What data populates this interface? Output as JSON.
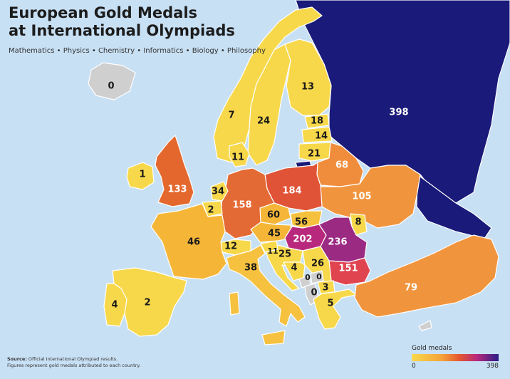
{
  "title": "European Gold Medals\nat International Olympiads",
  "subtitle": "Mathematics • Physics • Chemistry • Informatics • Biology • Philosophy",
  "legend": {
    "title": "Gold medals",
    "min": "0",
    "max": "398"
  },
  "footer": {
    "source_label": "Source:",
    "source_text": " Official International Olympiad results.",
    "note": "Figures represent gold medals attributed to each country."
  },
  "colors": {
    "sea": "#c8e0f4",
    "low": "#f7d84a",
    "mid": "#f5a23a",
    "high": "#e4562f",
    "very_high": "#b8287c",
    "max": "#1a1a7a",
    "no_data": "#cfcfcf"
  },
  "countries": [
    {
      "id": "iceland",
      "value": "0"
    },
    {
      "id": "norway",
      "value": "7"
    },
    {
      "id": "sweden",
      "value": "24"
    },
    {
      "id": "finland",
      "value": "13"
    },
    {
      "id": "russia",
      "value": "398"
    },
    {
      "id": "estonia",
      "value": "18"
    },
    {
      "id": "latvia",
      "value": "14"
    },
    {
      "id": "lithuania",
      "value": "21"
    },
    {
      "id": "denmark",
      "value": "11"
    },
    {
      "id": "ireland",
      "value": "1"
    },
    {
      "id": "uk",
      "value": "133"
    },
    {
      "id": "netherlands",
      "value": "34"
    },
    {
      "id": "belgium",
      "value": "2"
    },
    {
      "id": "germany",
      "value": "158"
    },
    {
      "id": "poland",
      "value": "184"
    },
    {
      "id": "belarus",
      "value": "68"
    },
    {
      "id": "ukraine",
      "value": "105"
    },
    {
      "id": "czechia",
      "value": "60"
    },
    {
      "id": "slovakia",
      "value": "56"
    },
    {
      "id": "moldova",
      "value": "8"
    },
    {
      "id": "austria",
      "value": "45"
    },
    {
      "id": "hungary",
      "value": "202"
    },
    {
      "id": "romania",
      "value": "236"
    },
    {
      "id": "france",
      "value": "46"
    },
    {
      "id": "switzerland",
      "value": "12"
    },
    {
      "id": "slovenia",
      "value": "11"
    },
    {
      "id": "croatia",
      "value": "25"
    },
    {
      "id": "serbia",
      "value": "26"
    },
    {
      "id": "bosnia",
      "value": "4"
    },
    {
      "id": "montenegro",
      "value": "0"
    },
    {
      "id": "kosovo",
      "value": "0"
    },
    {
      "id": "albania",
      "value": "0"
    },
    {
      "id": "north_macedonia",
      "value": "3"
    },
    {
      "id": "bulgaria",
      "value": "151"
    },
    {
      "id": "italy",
      "value": "38"
    },
    {
      "id": "spain",
      "value": "2"
    },
    {
      "id": "portugal",
      "value": "4"
    },
    {
      "id": "greece",
      "value": "5"
    },
    {
      "id": "turkey",
      "value": "79"
    }
  ]
}
